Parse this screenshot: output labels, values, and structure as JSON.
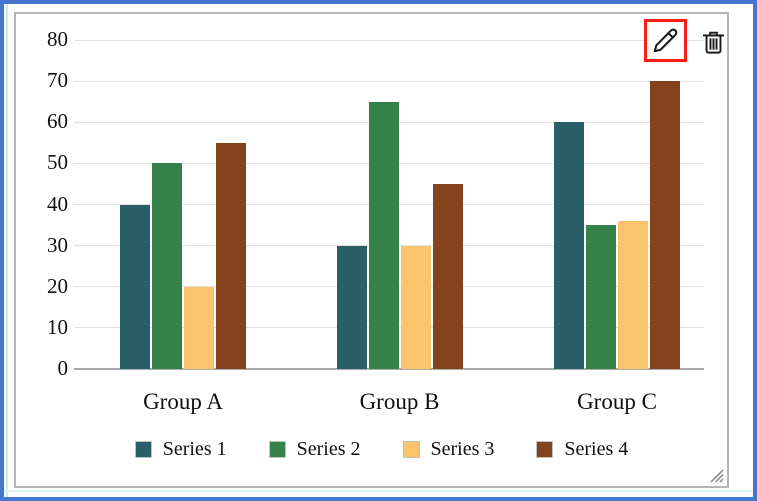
{
  "frame": {
    "selection_border_color": "#4377cd",
    "guide_color": "#c7eaf4"
  },
  "widget": {
    "border_color": "#b5b5b5",
    "toolbar": {
      "edit_icon": "pencil",
      "edit_highlight_color": "#fa1d12",
      "delete_icon": "trash"
    },
    "resize_grip_icon": "resize-grip"
  },
  "chart_data": {
    "type": "bar",
    "title": "",
    "categories": [
      "Group A",
      "Group B",
      "Group C"
    ],
    "series": [
      {
        "name": "Series 1",
        "color": "#2a5e68",
        "values": [
          40,
          30,
          60
        ]
      },
      {
        "name": "Series 2",
        "color": "#35834a",
        "values": [
          50,
          65,
          35
        ]
      },
      {
        "name": "Series 3",
        "color": "#fac46d",
        "values": [
          20,
          30,
          36
        ]
      },
      {
        "name": "Series 4",
        "color": "#84431c",
        "values": [
          55,
          45,
          70
        ]
      }
    ],
    "ylim": [
      0,
      80
    ],
    "yticks": [
      0,
      10,
      20,
      30,
      40,
      50,
      60,
      70,
      80
    ],
    "grid": true,
    "gridline_color": "#e2e2e2",
    "axis_color": "#ababab",
    "legend_position": "bottom"
  }
}
